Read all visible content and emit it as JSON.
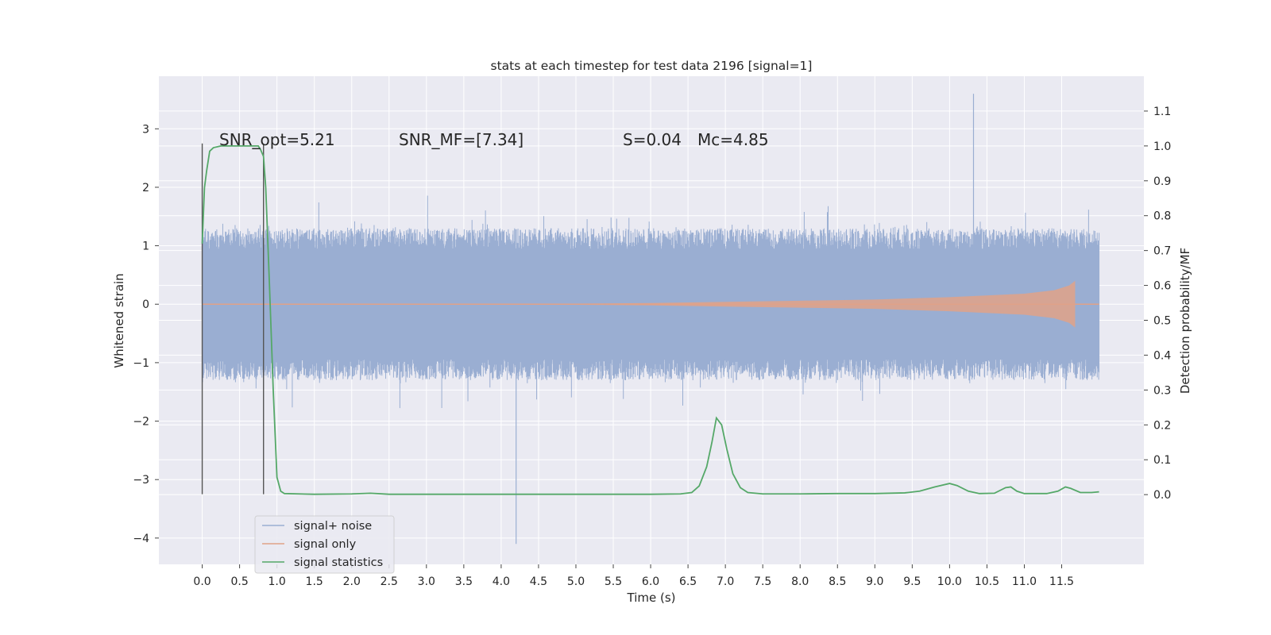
{
  "chart_data": {
    "type": "line",
    "title": "stats at each timestep for test data 2196 [signal=1]",
    "xlabel": "Time (s)",
    "ylabel": "Whitened strain",
    "ylabel_right": "Detection probability/MF",
    "xlim": [
      -0.58,
      12.6
    ],
    "ylim": [
      -4.45,
      3.9
    ],
    "ylim_right": [
      -0.2,
      1.2
    ],
    "x_ticks": [
      "0.0",
      "0.5",
      "1.0",
      "1.5",
      "2.0",
      "2.5",
      "3.0",
      "3.5",
      "4.0",
      "4.5",
      "5.0",
      "5.5",
      "6.0",
      "6.5",
      "7.0",
      "7.5",
      "8.0",
      "8.5",
      "9.0",
      "9.5",
      "10.0",
      "10.5",
      "11.0",
      "11.5"
    ],
    "y_ticks_left": [
      "3",
      "2",
      "1",
      "0",
      "−1",
      "−2",
      "−3",
      "−4"
    ],
    "y_ticks_right": [
      "1.1",
      "1.0",
      "0.9",
      "0.8",
      "0.7",
      "0.6",
      "0.5",
      "0.4",
      "0.3",
      "0.2",
      "0.1",
      "0.0"
    ],
    "grid": true,
    "legend_placement": "lower-left",
    "annotations": [
      {
        "name": "snr-opt",
        "text": "SNR_opt=5.21"
      },
      {
        "name": "snr-mf",
        "text": "SNR_MF=[7.34]"
      },
      {
        "name": "s-value",
        "text": "S=0.04"
      },
      {
        "name": "mc-value",
        "text": "Mc=4.85"
      }
    ],
    "vertical_markers": [
      0.0,
      0.82
    ],
    "series": [
      {
        "name": "signal+ noise",
        "color": "#9aaed2",
        "kind": "noisy_band",
        "x_range": [
          0.0,
          12.0
        ],
        "typical_range": [
          -1.0,
          1.0
        ],
        "max": 3.6,
        "min": -4.1
      },
      {
        "name": "signal only",
        "color": "#e0a288",
        "kind": "chirp",
        "x_range": [
          0.0,
          11.68
        ],
        "envelope": [
          [
            0.0,
            0.002
          ],
          [
            3.0,
            0.005
          ],
          [
            5.0,
            0.01
          ],
          [
            6.0,
            0.02
          ],
          [
            7.0,
            0.04
          ],
          [
            8.0,
            0.06
          ],
          [
            9.0,
            0.08
          ],
          [
            10.0,
            0.12
          ],
          [
            11.0,
            0.18
          ],
          [
            11.4,
            0.24
          ],
          [
            11.6,
            0.32
          ],
          [
            11.68,
            0.4
          ]
        ]
      },
      {
        "name": "signal statistics",
        "color": "#55a868",
        "kind": "line",
        "axis": "right",
        "points": [
          [
            0.0,
            0.72
          ],
          [
            0.03,
            0.88
          ],
          [
            0.06,
            0.93
          ],
          [
            0.1,
            0.985
          ],
          [
            0.15,
            0.995
          ],
          [
            0.25,
            1.0
          ],
          [
            0.5,
            1.0
          ],
          [
            0.75,
            1.0
          ],
          [
            0.78,
            0.99
          ],
          [
            0.82,
            0.97
          ],
          [
            0.85,
            0.88
          ],
          [
            0.9,
            0.6
          ],
          [
            0.95,
            0.3
          ],
          [
            1.0,
            0.05
          ],
          [
            1.05,
            0.01
          ],
          [
            1.1,
            0.003
          ],
          [
            1.5,
            0.001
          ],
          [
            2.0,
            0.002
          ],
          [
            2.25,
            0.004
          ],
          [
            2.5,
            0.001
          ],
          [
            3.0,
            0.001
          ],
          [
            4.0,
            0.001
          ],
          [
            5.0,
            0.001
          ],
          [
            6.0,
            0.001
          ],
          [
            6.4,
            0.002
          ],
          [
            6.55,
            0.006
          ],
          [
            6.65,
            0.025
          ],
          [
            6.75,
            0.08
          ],
          [
            6.82,
            0.15
          ],
          [
            6.88,
            0.22
          ],
          [
            6.95,
            0.2
          ],
          [
            7.02,
            0.13
          ],
          [
            7.1,
            0.06
          ],
          [
            7.2,
            0.02
          ],
          [
            7.3,
            0.006
          ],
          [
            7.5,
            0.002
          ],
          [
            8.0,
            0.002
          ],
          [
            8.5,
            0.003
          ],
          [
            9.0,
            0.003
          ],
          [
            9.4,
            0.005
          ],
          [
            9.6,
            0.01
          ],
          [
            9.8,
            0.022
          ],
          [
            10.0,
            0.032
          ],
          [
            10.1,
            0.026
          ],
          [
            10.25,
            0.01
          ],
          [
            10.4,
            0.003
          ],
          [
            10.6,
            0.004
          ],
          [
            10.75,
            0.02
          ],
          [
            10.82,
            0.022
          ],
          [
            10.9,
            0.01
          ],
          [
            11.0,
            0.003
          ],
          [
            11.3,
            0.003
          ],
          [
            11.45,
            0.01
          ],
          [
            11.55,
            0.022
          ],
          [
            11.62,
            0.018
          ],
          [
            11.75,
            0.006
          ],
          [
            11.9,
            0.006
          ],
          [
            12.0,
            0.008
          ]
        ]
      }
    ]
  }
}
